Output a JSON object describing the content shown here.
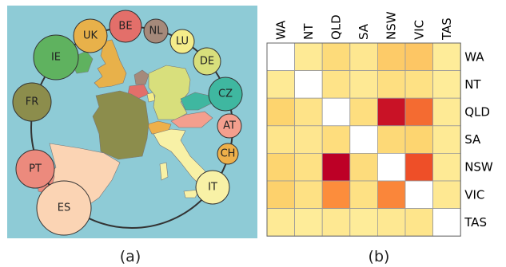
{
  "captions": {
    "left": "(a)",
    "right": "(b)"
  },
  "map_panel": {
    "background": "#8ecbd6",
    "ring_color": "#333333",
    "countries": [
      {
        "code": "UK",
        "color": "#e8b14a"
      },
      {
        "code": "BE",
        "color": "#e36f6a"
      },
      {
        "code": "NL",
        "color": "#a5897a"
      },
      {
        "code": "LU",
        "color": "#f4ec8a"
      },
      {
        "code": "DE",
        "color": "#d8df7c"
      },
      {
        "code": "CZ",
        "color": "#3fb7a0"
      },
      {
        "code": "AT",
        "color": "#f49f8e"
      },
      {
        "code": "CH",
        "color": "#eeb04a"
      },
      {
        "code": "IT",
        "color": "#f8f1a6"
      },
      {
        "code": "ES",
        "color": "#fbd4b4"
      },
      {
        "code": "PT",
        "color": "#ec8a7d"
      },
      {
        "code": "FR",
        "color": "#8c8d4c"
      },
      {
        "code": "IE",
        "color": "#5fb25f"
      }
    ]
  },
  "chart_data": {
    "type": "heatmap",
    "x_labels": [
      "WA",
      "NT",
      "QLD",
      "SA",
      "NSW",
      "VIC",
      "TAS"
    ],
    "y_labels": [
      "WA",
      "NT",
      "QLD",
      "SA",
      "NSW",
      "VIC",
      "TAS"
    ],
    "values": [
      [
        null,
        0.12,
        0.28,
        0.15,
        0.38,
        0.4,
        0.1
      ],
      [
        0.12,
        null,
        0.2,
        0.13,
        0.24,
        0.22,
        0.1
      ],
      [
        0.35,
        0.2,
        null,
        0.25,
        0.95,
        0.7,
        0.12
      ],
      [
        0.18,
        0.16,
        0.26,
        null,
        0.3,
        0.34,
        0.12
      ],
      [
        0.34,
        0.22,
        1.0,
        0.27,
        null,
        0.78,
        0.12
      ],
      [
        0.36,
        0.22,
        0.6,
        0.22,
        0.62,
        null,
        0.14
      ],
      [
        0.12,
        0.1,
        0.14,
        0.1,
        0.14,
        0.18,
        null
      ]
    ]
  }
}
